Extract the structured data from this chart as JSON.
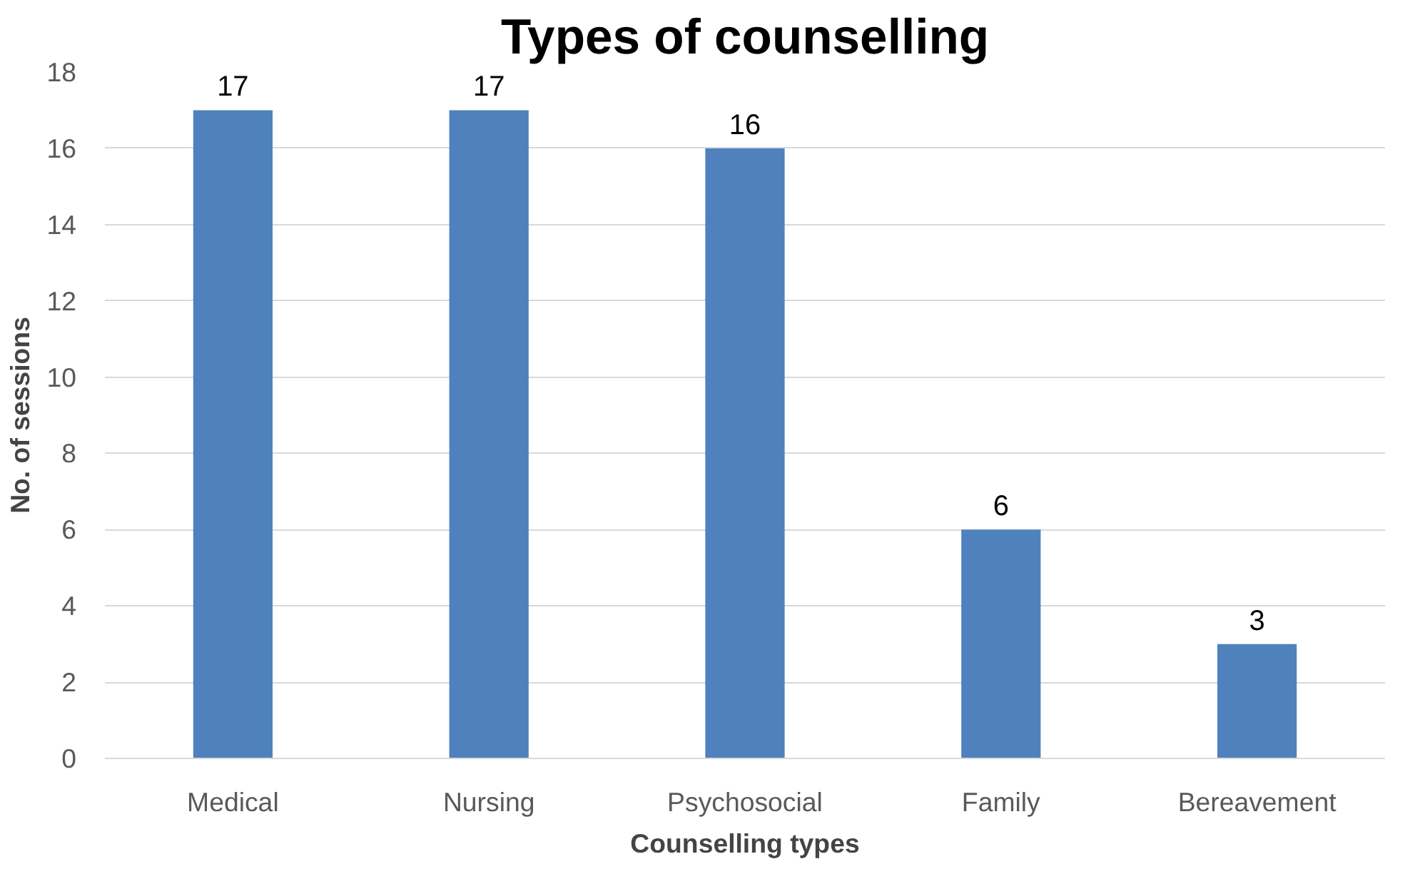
{
  "chart_data": {
    "type": "bar",
    "title": "Types of counselling",
    "xlabel": "Counselling types",
    "ylabel": "No. of sessions",
    "categories": [
      "Medical",
      "Nursing",
      "Psychosocial",
      "Family",
      "Bereavement"
    ],
    "values": [
      17,
      17,
      16,
      6,
      3
    ],
    "color": "#4f81bd",
    "ylim": [
      0,
      18
    ],
    "yticks": [
      0,
      2,
      4,
      6,
      8,
      10,
      12,
      14,
      16,
      18
    ],
    "grid": "y",
    "data_labels": true
  }
}
